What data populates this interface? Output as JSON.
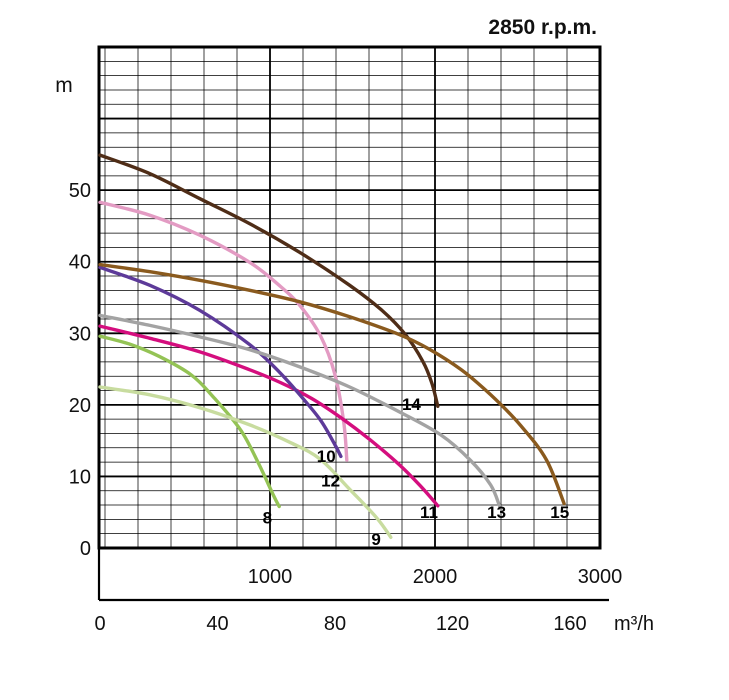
{
  "chart_data": {
    "type": "line",
    "title": "2850 r.p.m.",
    "grid": true,
    "y_axis": {
      "unit": "m",
      "ticks": [
        50,
        40,
        30,
        20,
        10,
        0
      ],
      "range": [
        0,
        70
      ],
      "minor_step": 2,
      "major_step": 10
    },
    "x_axis_inner": {
      "ticks": [
        1000,
        2000,
        3000
      ],
      "range": [
        0,
        3000
      ],
      "minor_step": 200,
      "major_step": 1000
    },
    "x_axis_lower": {
      "unit": "m³/h",
      "ticks": [
        0,
        40,
        80,
        120,
        160
      ],
      "range": [
        0,
        170
      ]
    },
    "series": [
      {
        "name": "curve-8",
        "label": "8",
        "color": "#94c355",
        "points": [
          [
            0,
            29.6
          ],
          [
            10,
            28.5
          ],
          [
            20,
            26.8
          ],
          [
            31,
            24.2
          ],
          [
            39,
            20.9
          ],
          [
            48,
            16.4
          ],
          [
            54,
            11.8
          ],
          [
            59,
            7.4
          ],
          [
            61,
            5.8
          ]
        ],
        "label_pos": [
          57,
          3.4
        ]
      },
      {
        "name": "curve-9",
        "label": "9",
        "color": "#c8dc9f",
        "points": [
          [
            0,
            22.5
          ],
          [
            17,
            21.4
          ],
          [
            34,
            19.6
          ],
          [
            51,
            17.2
          ],
          [
            65,
            14.7
          ],
          [
            75,
            12.4
          ],
          [
            85,
            8.2
          ],
          [
            94,
            4.3
          ],
          [
            99,
            1.5
          ]
        ],
        "label_pos": [
          94,
          0.4
        ]
      },
      {
        "name": "curve-10",
        "label": "10",
        "color": "#e39bc3",
        "points": [
          [
            0,
            48.3
          ],
          [
            17,
            46.5
          ],
          [
            34,
            43.7
          ],
          [
            51,
            39.9
          ],
          [
            61,
            36.7
          ],
          [
            68,
            33.9
          ],
          [
            75,
            29.7
          ],
          [
            80,
            24.2
          ],
          [
            83,
            17.5
          ],
          [
            84,
            12.3
          ]
        ],
        "label_pos": [
          77,
          12.0
        ]
      },
      {
        "name": "curve-11",
        "label": "11",
        "color": "#d40e7e",
        "points": [
          [
            0,
            31.0
          ],
          [
            17,
            29.3
          ],
          [
            34,
            27.4
          ],
          [
            51,
            24.9
          ],
          [
            61,
            23.2
          ],
          [
            72,
            20.9
          ],
          [
            82,
            18.2
          ],
          [
            92,
            15.1
          ],
          [
            102,
            11.6
          ],
          [
            109,
            8.7
          ],
          [
            115,
            5.9
          ]
        ],
        "label_pos": [
          112,
          4.2
        ]
      },
      {
        "name": "curve-12",
        "label": "12",
        "color": "#5d3a99",
        "points": [
          [
            0,
            39.2
          ],
          [
            17,
            36.7
          ],
          [
            34,
            33.2
          ],
          [
            51,
            28.4
          ],
          [
            61,
            24.6
          ],
          [
            68,
            21.4
          ],
          [
            75,
            17.9
          ],
          [
            80,
            14.4
          ],
          [
            82,
            12.8
          ]
        ],
        "label_pos": [
          78.5,
          8.6
        ]
      },
      {
        "name": "curve-13",
        "label": "13",
        "color": "#a3a3a3",
        "points": [
          [
            0,
            32.5
          ],
          [
            17,
            31.1
          ],
          [
            34,
            29.5
          ],
          [
            51,
            27.7
          ],
          [
            68,
            25.3
          ],
          [
            85,
            22.5
          ],
          [
            102,
            19.0
          ],
          [
            116,
            15.8
          ],
          [
            126,
            12.3
          ],
          [
            133,
            8.8
          ],
          [
            136,
            5.9
          ]
        ],
        "label_pos": [
          135,
          4.2
        ]
      },
      {
        "name": "curve-14",
        "label": "14",
        "color": "#4f2d17",
        "points": [
          [
            0,
            54.9
          ],
          [
            17,
            52.3
          ],
          [
            34,
            48.8
          ],
          [
            51,
            45.3
          ],
          [
            68,
            41.3
          ],
          [
            85,
            36.7
          ],
          [
            96,
            33.2
          ],
          [
            104,
            29.8
          ],
          [
            110,
            26.0
          ],
          [
            113,
            23.0
          ],
          [
            115,
            19.8
          ]
        ],
        "label_pos": [
          106,
          19.3
        ]
      },
      {
        "name": "curve-15",
        "label": "15",
        "color": "#8a5a1e",
        "points": [
          [
            0,
            39.6
          ],
          [
            17,
            38.6
          ],
          [
            34,
            37.4
          ],
          [
            51,
            36.0
          ],
          [
            68,
            34.4
          ],
          [
            85,
            32.3
          ],
          [
            102,
            29.8
          ],
          [
            112,
            27.8
          ],
          [
            123,
            24.9
          ],
          [
            133,
            21.4
          ],
          [
            143,
            17.2
          ],
          [
            152,
            12.3
          ],
          [
            158,
            6.2
          ]
        ],
        "label_pos": [
          156.5,
          4.2
        ]
      }
    ]
  }
}
